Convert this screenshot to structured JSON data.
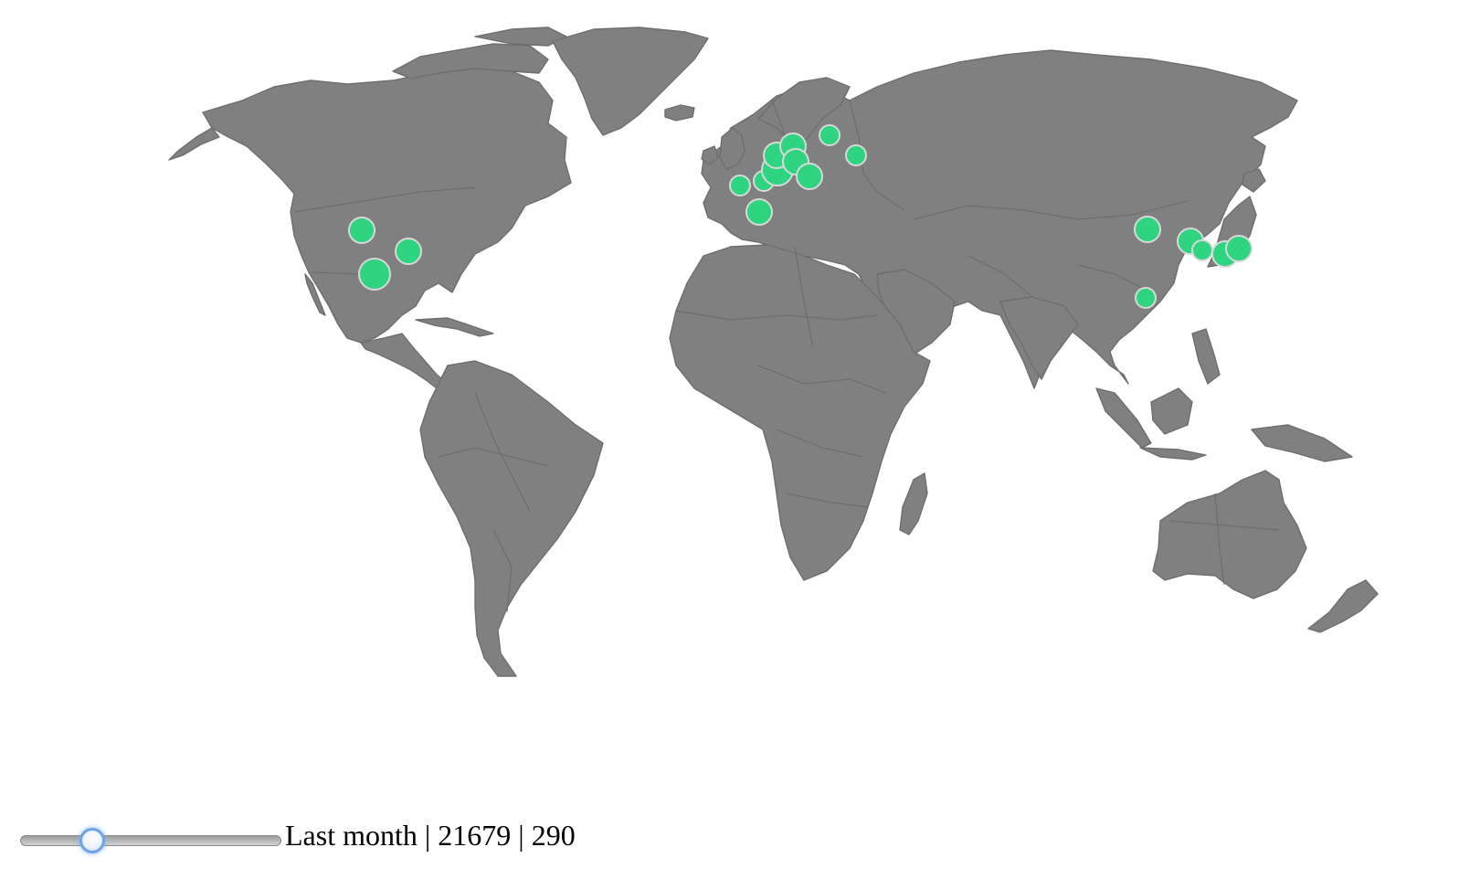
{
  "map": {
    "land_color": "#808080",
    "marker_color": "#2ed47f",
    "marker_stroke": "#d8d8d8",
    "markers": [
      {
        "place": "Utah/Colorado, US",
        "size": "medium"
      },
      {
        "place": "Arkansas/Tennessee, US",
        "size": "medium"
      },
      {
        "place": "Texas, US",
        "size": "large"
      },
      {
        "place": "France",
        "size": "small"
      },
      {
        "place": "Spain (Barcelona)",
        "size": "medium"
      },
      {
        "place": "Switzerland",
        "size": "small"
      },
      {
        "place": "Germany",
        "size": "large"
      },
      {
        "place": "Germany (north)",
        "size": "medium"
      },
      {
        "place": "Poland",
        "size": "medium"
      },
      {
        "place": "Baltics",
        "size": "medium"
      },
      {
        "place": "Hungary/Romania",
        "size": "medium"
      },
      {
        "place": "Russia (St. Petersburg)",
        "size": "small"
      },
      {
        "place": "Russia (Moscow)",
        "size": "small"
      },
      {
        "place": "Beijing, China",
        "size": "medium"
      },
      {
        "place": "Korea",
        "size": "medium"
      },
      {
        "place": "Japan (west)",
        "size": "small"
      },
      {
        "place": "Japan (Osaka)",
        "size": "medium"
      },
      {
        "place": "Japan (Tokyo)",
        "size": "medium"
      },
      {
        "place": "Southern China",
        "size": "small"
      }
    ]
  },
  "controls": {
    "slider_value": 0.25,
    "period_label": "Last month",
    "separator": "|",
    "total": "21679",
    "count": "290"
  }
}
